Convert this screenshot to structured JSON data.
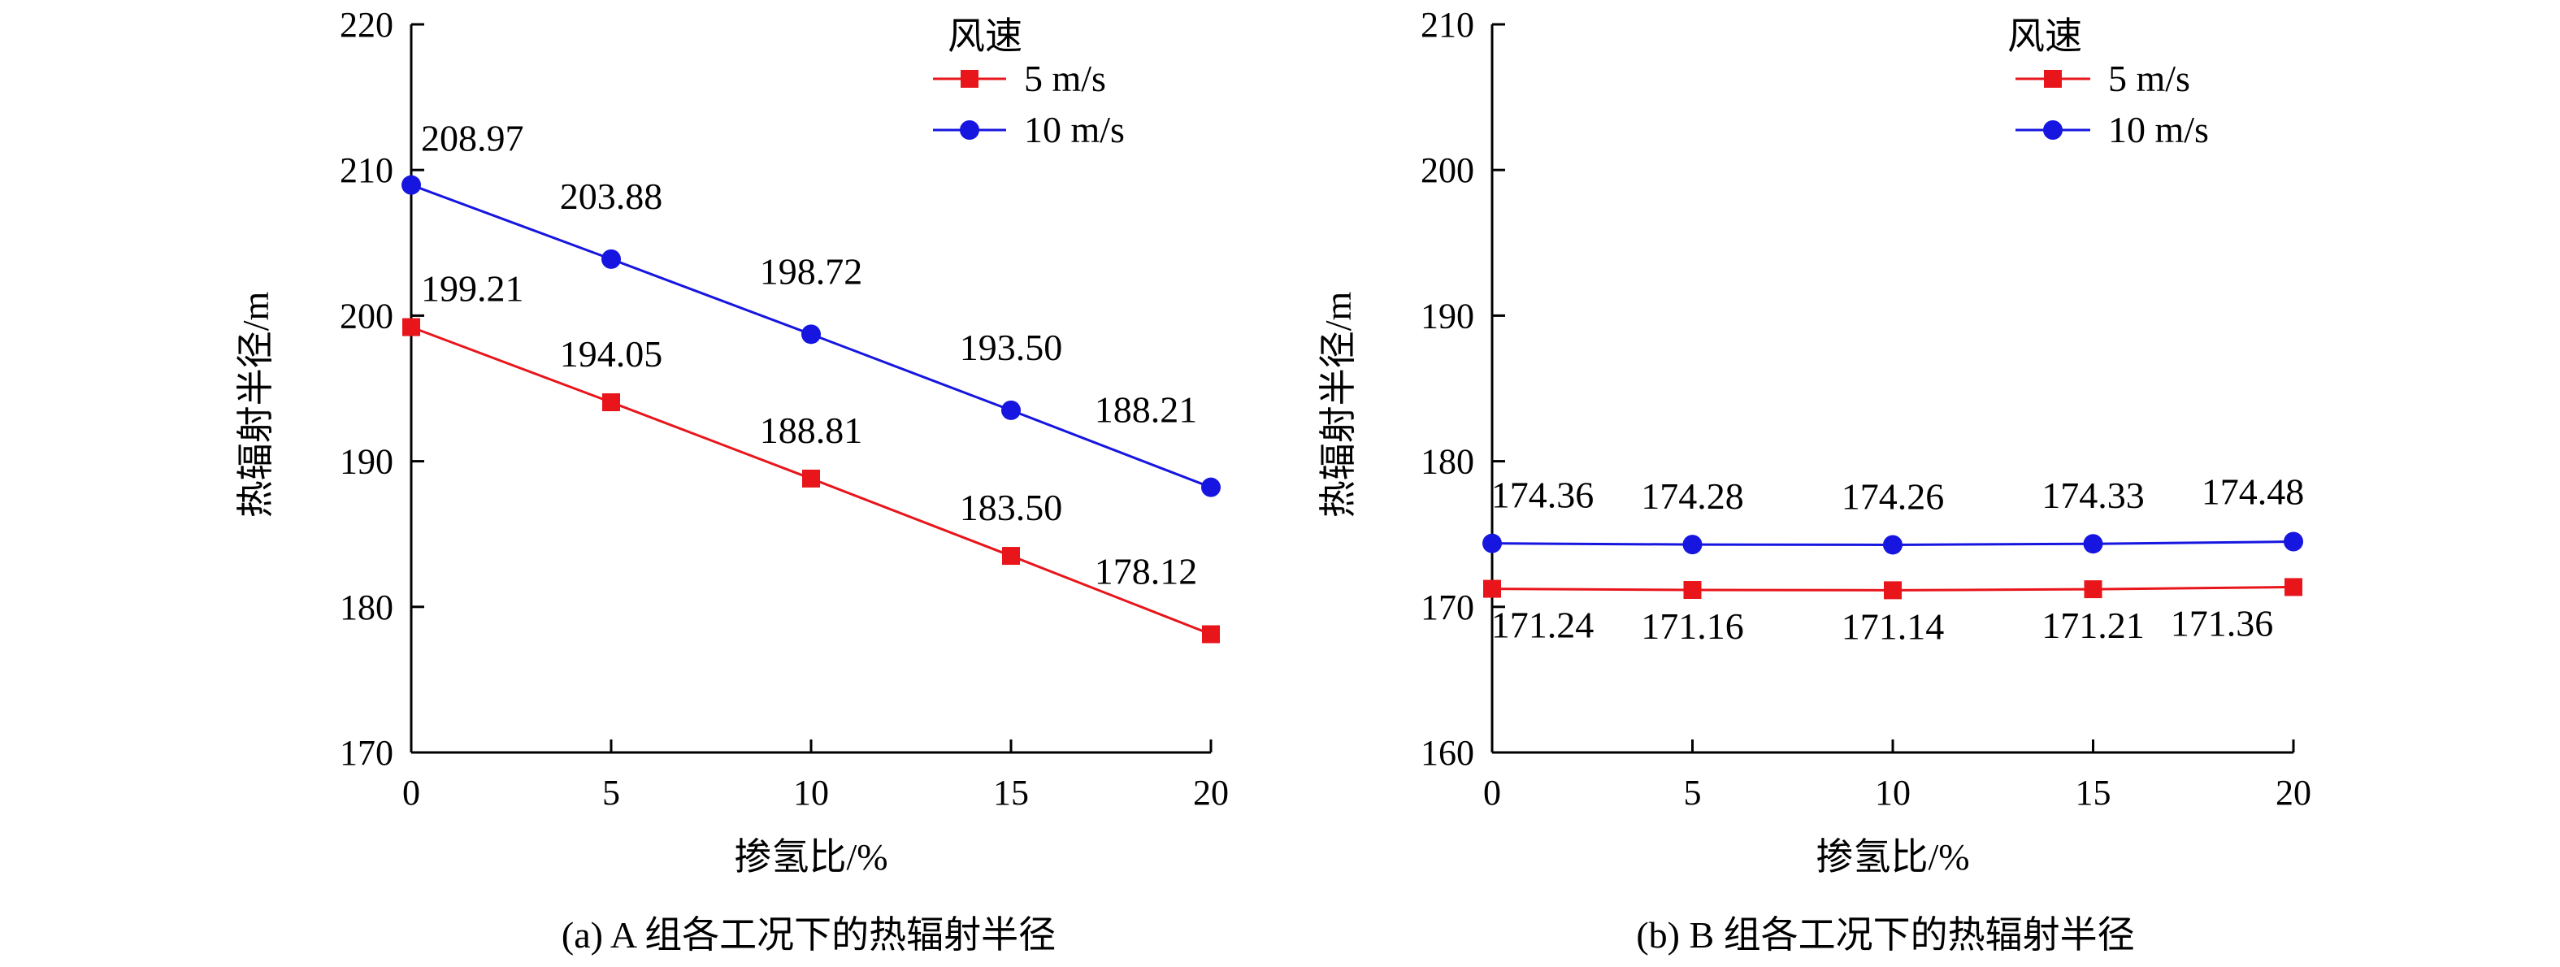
{
  "chart_data": [
    {
      "type": "line",
      "caption": "(a) A 组各工况下的热辐射半径",
      "xlabel": "掺氢比/%",
      "ylabel": "热辐射半径/m",
      "x": [
        0,
        5,
        10,
        15,
        20
      ],
      "xticks": [
        "0",
        "5",
        "10",
        "15",
        "20"
      ],
      "ylim": [
        170,
        220
      ],
      "yticks": [
        "170",
        "180",
        "190",
        "200",
        "210",
        "220"
      ],
      "legend_title": "风速",
      "legend_position": "top-right",
      "grid": false,
      "series": [
        {
          "name": "5 m/s",
          "color": "#e8151b",
          "marker": "square",
          "values": [
            199.21,
            194.05,
            188.81,
            183.5,
            178.12
          ],
          "labels": [
            "199.21",
            "194.05",
            "188.81",
            "183.50",
            "178.12"
          ]
        },
        {
          "name": "10 m/s",
          "color": "#1616e0",
          "marker": "circle",
          "values": [
            208.97,
            203.88,
            198.72,
            193.5,
            188.21
          ],
          "labels": [
            "208.97",
            "203.88",
            "198.72",
            "193.50",
            "188.21"
          ]
        }
      ]
    },
    {
      "type": "line",
      "caption": "(b) B 组各工况下的热辐射半径",
      "xlabel": "掺氢比/%",
      "ylabel": "热辐射半径/m",
      "x": [
        0,
        5,
        10,
        15,
        20
      ],
      "xticks": [
        "0",
        "5",
        "10",
        "15",
        "20"
      ],
      "ylim": [
        160,
        210
      ],
      "yticks": [
        "160",
        "170",
        "180",
        "190",
        "200",
        "210"
      ],
      "legend_title": "风速",
      "legend_position": "top-right",
      "grid": false,
      "series": [
        {
          "name": "5 m/s",
          "color": "#e8151b",
          "marker": "square",
          "values": [
            171.24,
            171.16,
            171.14,
            171.21,
            171.36
          ],
          "labels": [
            "171.24",
            "171.16",
            "171.14",
            "171.21",
            "171.36"
          ]
        },
        {
          "name": "10 m/s",
          "color": "#1616e0",
          "marker": "circle",
          "values": [
            174.36,
            174.28,
            174.26,
            174.33,
            174.48
          ],
          "labels": [
            "174.36",
            "174.28",
            "174.26",
            "174.33",
            "174.48"
          ]
        }
      ]
    }
  ]
}
